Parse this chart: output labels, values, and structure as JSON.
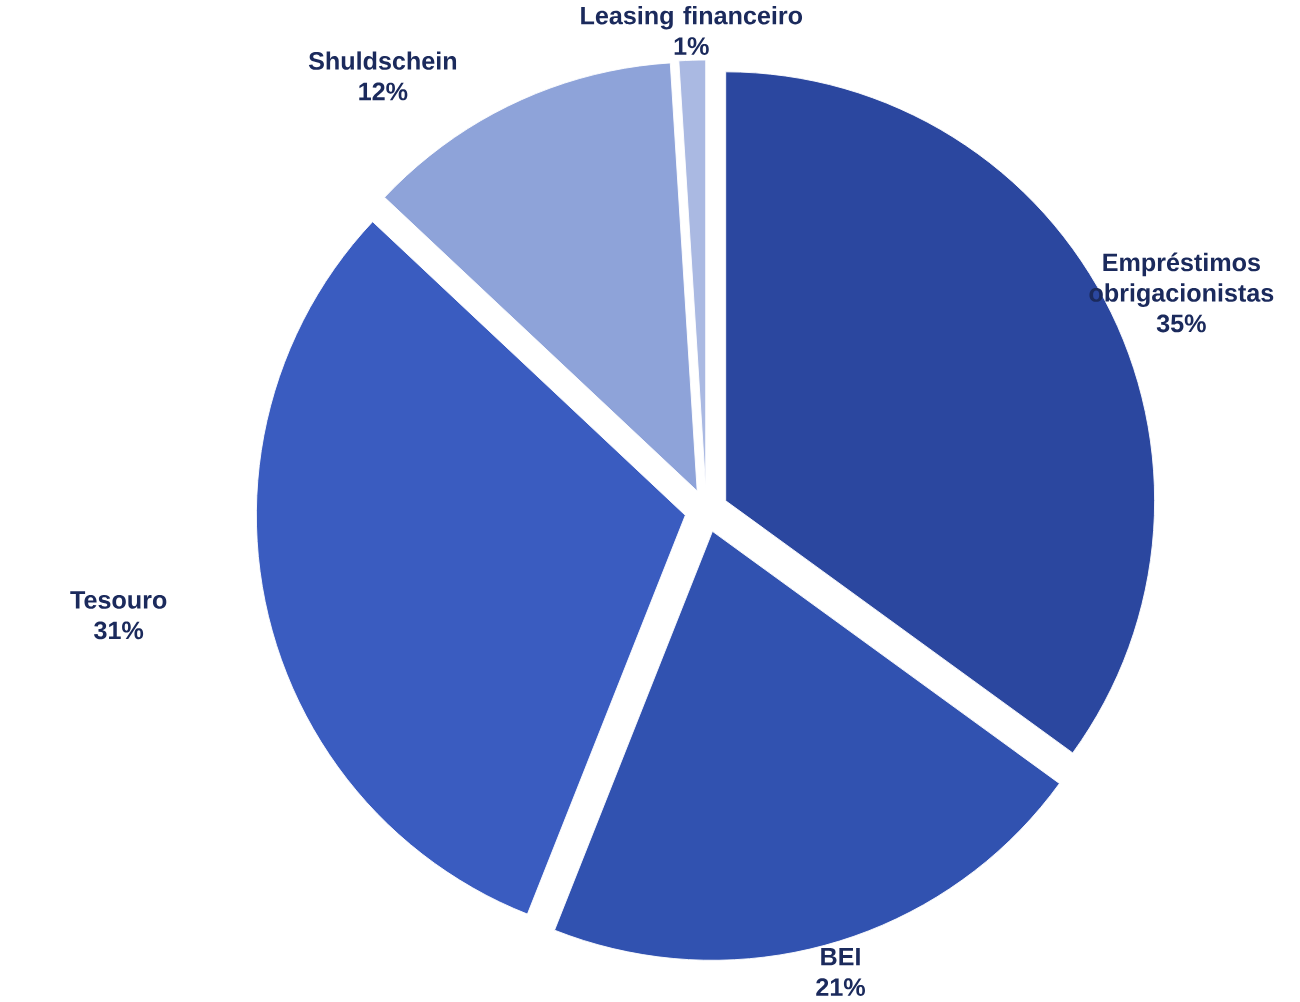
{
  "chart_data": {
    "type": "pie",
    "categories": [
      "Empréstimos obrigacionistas",
      "BEI",
      "Tesouro",
      "Shuldschein",
      "Leasing financeiro"
    ],
    "values": [
      35,
      21,
      31,
      12,
      1
    ],
    "value_labels": [
      "35%",
      "21%",
      "31%",
      "12%",
      "1%"
    ],
    "colors": [
      "#2b479f",
      "#3152b0",
      "#3a5cc0",
      "#8ea3d9",
      "#aab9e2"
    ]
  }
}
